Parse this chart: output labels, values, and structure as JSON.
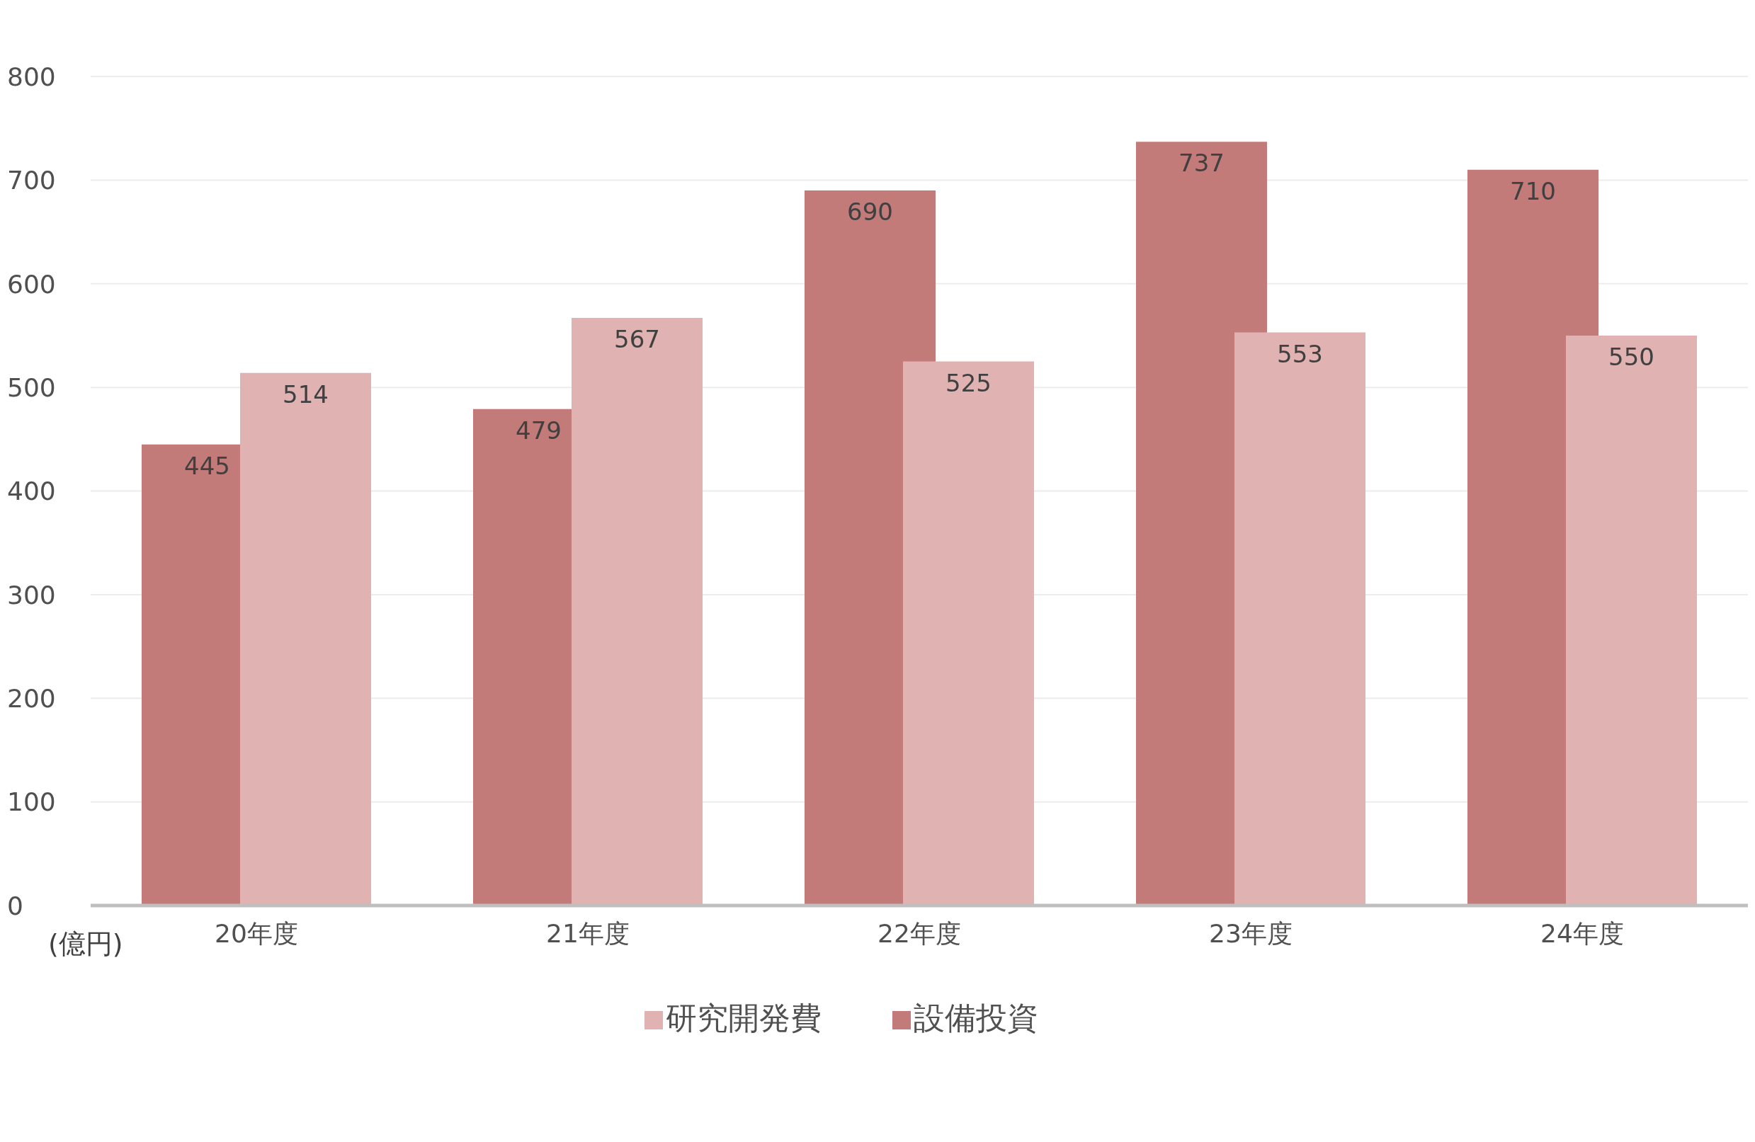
{
  "chart_data": {
    "type": "bar",
    "ylabel": "(億円)",
    "categories": [
      "20年度",
      "21年度",
      "22年度",
      "23年度",
      "24年度"
    ],
    "series": [
      {
        "name": "設備投資",
        "color": "#c27b79",
        "values": [
          445,
          479,
          690,
          737,
          710
        ]
      },
      {
        "name": "研究開発費",
        "color": "#e0b2b1",
        "values": [
          514,
          567,
          525,
          553,
          550
        ]
      }
    ],
    "ylim": [
      0,
      800
    ],
    "yticks": [
      0,
      100,
      200,
      300,
      400,
      500,
      600,
      700,
      800
    ],
    "grid": "y",
    "legend": "bottom",
    "data_labels": true
  }
}
